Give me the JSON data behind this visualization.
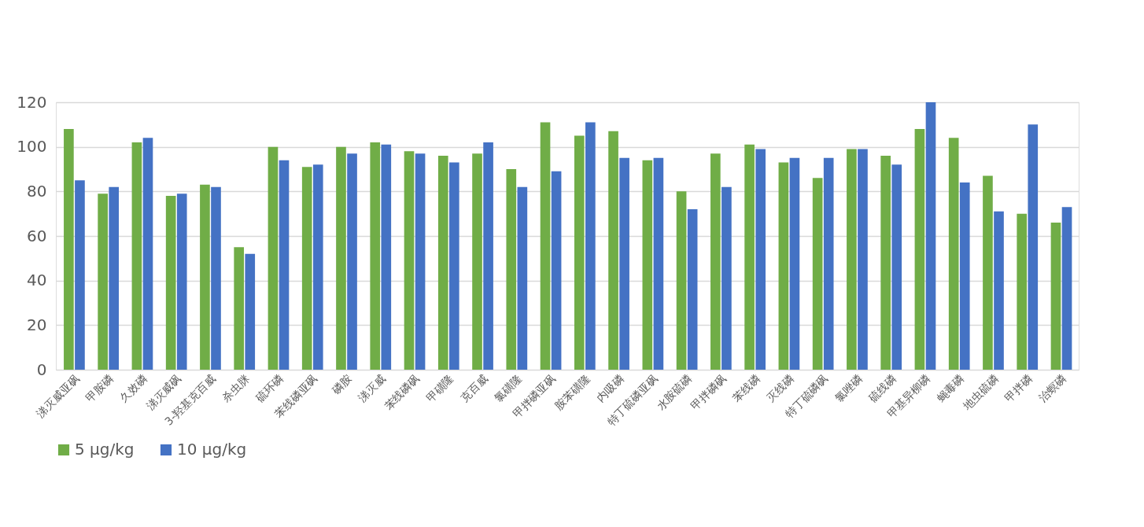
{
  "chart_data": {
    "type": "bar",
    "categories": [
      "涕灭威亚砜",
      "甲胺磷",
      "久效磷",
      "涕灭威砜",
      "3-羟基克百威",
      "杀虫脒",
      "硫环磷",
      "苯线磷亚砜",
      "磷胺",
      "涕灭威",
      "苯线磷砜",
      "甲磺隆",
      "克百威",
      "氯磺隆",
      "甲拌磷亚砜",
      "胺苯磺隆",
      "内吸磷",
      "特丁硫磷亚砜",
      "水胺硫磷",
      "甲拌磷砜",
      "苯线磷",
      "灭线磷",
      "特丁硫磷砜",
      "氯唑磷",
      "硫线磷",
      "甲基异柳磷",
      "蝇毒磷",
      "地虫硫磷",
      "甲拌磷",
      "治螟磷"
    ],
    "series": [
      {
        "name": "5 μg/kg",
        "color": "#70ad47",
        "values": [
          108,
          79,
          102,
          78,
          83,
          55,
          100,
          91,
          100,
          102,
          98,
          96,
          97,
          90,
          111,
          105,
          107,
          94,
          80,
          97,
          101,
          93,
          86,
          99,
          96,
          108,
          104,
          87,
          70,
          66
        ]
      },
      {
        "name": "10 μg/kg",
        "color": "#4472c4",
        "values": [
          85,
          82,
          104,
          79,
          82,
          52,
          94,
          92,
          97,
          101,
          97,
          93,
          102,
          82,
          89,
          111,
          95,
          95,
          72,
          82,
          99,
          95,
          95,
          99,
          92,
          120,
          84,
          71,
          110,
          73
        ]
      }
    ],
    "ylim": [
      0,
      120
    ],
    "yticks": [
      0,
      20,
      40,
      60,
      80,
      100,
      120
    ],
    "grid": "y",
    "legend": "bottom"
  }
}
